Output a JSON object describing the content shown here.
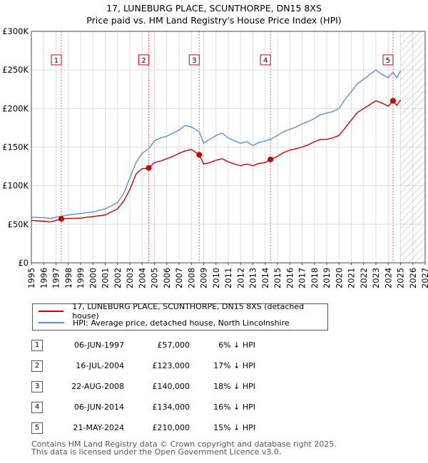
{
  "title_line1": "17, LUNEBURG PLACE, SCUNTHORPE, DN15 8XS",
  "title_line2": "Price paid vs. HM Land Registry's House Price Index (HPI)",
  "legend": {
    "property": "17, LUNEBURG PLACE, SCUNTHORPE, DN15 8XS (detached house)",
    "hpi": "HPI: Average price, detached house, North Lincolnshire"
  },
  "colors": {
    "property": "#cc0000",
    "hpi": "#5b8fd1",
    "grid": "#dddddd",
    "marker_line": "#e06666",
    "hatch": "#b0b0b0"
  },
  "chart_data": {
    "type": "line",
    "xlim": [
      1995,
      2027
    ],
    "ylim": [
      0,
      300000
    ],
    "y_ticks": [
      0,
      50000,
      100000,
      150000,
      200000,
      250000,
      300000
    ],
    "y_tick_labels": [
      "£0",
      "£50K",
      "£100K",
      "£150K",
      "£200K",
      "£250K",
      "£300K"
    ],
    "x_ticks": [
      1995,
      1996,
      1997,
      1998,
      1999,
      2000,
      2001,
      2002,
      2003,
      2004,
      2005,
      2006,
      2007,
      2008,
      2009,
      2010,
      2011,
      2012,
      2013,
      2014,
      2015,
      2016,
      2017,
      2018,
      2019,
      2020,
      2021,
      2022,
      2023,
      2024,
      2025,
      2026,
      2027
    ],
    "forecast_from": 2025.0,
    "series": [
      {
        "name": "17, LUNEBURG PLACE, SCUNTHORPE, DN15 8XS (detached house)",
        "points": [
          [
            1995.0,
            55000
          ],
          [
            1996.0,
            54000
          ],
          [
            1996.5,
            53000
          ],
          [
            1997.0,
            55000
          ],
          [
            1997.43,
            57000
          ],
          [
            1998.0,
            57500
          ],
          [
            1999.0,
            58000
          ],
          [
            2000.0,
            60000
          ],
          [
            2001.0,
            62000
          ],
          [
            2002.0,
            70000
          ],
          [
            2002.5,
            80000
          ],
          [
            2003.0,
            95000
          ],
          [
            2003.5,
            115000
          ],
          [
            2004.0,
            122000
          ],
          [
            2004.54,
            123000
          ],
          [
            2005.0,
            130000
          ],
          [
            2005.5,
            132000
          ],
          [
            2006.0,
            135000
          ],
          [
            2006.5,
            138000
          ],
          [
            2007.0,
            142000
          ],
          [
            2007.5,
            145000
          ],
          [
            2008.0,
            147000
          ],
          [
            2008.64,
            140000
          ],
          [
            2009.0,
            128000
          ],
          [
            2009.5,
            130000
          ],
          [
            2010.0,
            133000
          ],
          [
            2010.5,
            135000
          ],
          [
            2011.0,
            131000
          ],
          [
            2011.5,
            128000
          ],
          [
            2012.0,
            126000
          ],
          [
            2012.5,
            128000
          ],
          [
            2013.0,
            126000
          ],
          [
            2013.5,
            129000
          ],
          [
            2014.0,
            130000
          ],
          [
            2014.43,
            134000
          ],
          [
            2015.0,
            138000
          ],
          [
            2015.5,
            143000
          ],
          [
            2016.0,
            146000
          ],
          [
            2016.5,
            148000
          ],
          [
            2017.0,
            150000
          ],
          [
            2017.5,
            153000
          ],
          [
            2018.0,
            157000
          ],
          [
            2018.5,
            160000
          ],
          [
            2019.0,
            160000
          ],
          [
            2019.5,
            162000
          ],
          [
            2020.0,
            165000
          ],
          [
            2020.5,
            175000
          ],
          [
            2021.0,
            185000
          ],
          [
            2021.5,
            195000
          ],
          [
            2022.0,
            200000
          ],
          [
            2022.5,
            205000
          ],
          [
            2023.0,
            210000
          ],
          [
            2023.5,
            207000
          ],
          [
            2024.0,
            203000
          ],
          [
            2024.39,
            210000
          ],
          [
            2024.7,
            204000
          ],
          [
            2025.0,
            211000
          ]
        ]
      },
      {
        "name": "HPI: Average price, detached house, North Lincolnshire",
        "points": [
          [
            1995.0,
            59000
          ],
          [
            1996.0,
            58500
          ],
          [
            1996.5,
            57500
          ],
          [
            1997.0,
            59000
          ],
          [
            1997.43,
            60500
          ],
          [
            1998.0,
            62000
          ],
          [
            1999.0,
            64000
          ],
          [
            2000.0,
            66000
          ],
          [
            2001.0,
            70000
          ],
          [
            2002.0,
            78000
          ],
          [
            2002.5,
            90000
          ],
          [
            2003.0,
            110000
          ],
          [
            2003.5,
            130000
          ],
          [
            2004.0,
            142000
          ],
          [
            2004.54,
            148000
          ],
          [
            2005.0,
            158000
          ],
          [
            2005.5,
            162000
          ],
          [
            2006.0,
            164000
          ],
          [
            2006.5,
            168000
          ],
          [
            2007.0,
            172000
          ],
          [
            2007.5,
            178000
          ],
          [
            2008.0,
            176000
          ],
          [
            2008.64,
            170000
          ],
          [
            2009.0,
            155000
          ],
          [
            2009.5,
            160000
          ],
          [
            2010.0,
            165000
          ],
          [
            2010.5,
            168000
          ],
          [
            2011.0,
            162000
          ],
          [
            2011.5,
            158000
          ],
          [
            2012.0,
            155000
          ],
          [
            2012.5,
            157000
          ],
          [
            2013.0,
            152000
          ],
          [
            2013.5,
            156000
          ],
          [
            2014.0,
            158000
          ],
          [
            2014.43,
            160000
          ],
          [
            2015.0,
            165000
          ],
          [
            2015.5,
            170000
          ],
          [
            2016.0,
            173000
          ],
          [
            2016.5,
            176000
          ],
          [
            2017.0,
            180000
          ],
          [
            2017.5,
            183000
          ],
          [
            2018.0,
            187000
          ],
          [
            2018.5,
            192000
          ],
          [
            2019.0,
            194000
          ],
          [
            2019.5,
            196000
          ],
          [
            2020.0,
            200000
          ],
          [
            2020.5,
            212000
          ],
          [
            2021.0,
            222000
          ],
          [
            2021.5,
            232000
          ],
          [
            2022.0,
            238000
          ],
          [
            2022.5,
            244000
          ],
          [
            2023.0,
            250000
          ],
          [
            2023.5,
            244000
          ],
          [
            2024.0,
            240000
          ],
          [
            2024.39,
            247000
          ],
          [
            2024.7,
            240000
          ],
          [
            2025.0,
            249000
          ]
        ]
      }
    ],
    "sales": [
      {
        "num": "1",
        "x": 1997.43,
        "price": 57000,
        "date": "06-JUN-1997",
        "price_label": "£57,000",
        "hpi": "6% ↓ HPI"
      },
      {
        "num": "2",
        "x": 2004.54,
        "price": 123000,
        "date": "16-JUL-2004",
        "price_label": "£123,000",
        "hpi": "17% ↓ HPI"
      },
      {
        "num": "3",
        "x": 2008.64,
        "price": 140000,
        "date": "22-AUG-2008",
        "price_label": "£140,000",
        "hpi": "18% ↓ HPI"
      },
      {
        "num": "4",
        "x": 2014.43,
        "price": 134000,
        "date": "06-JUN-2014",
        "price_label": "£134,000",
        "hpi": "16% ↓ HPI"
      },
      {
        "num": "5",
        "x": 2024.39,
        "price": 210000,
        "date": "21-MAY-2024",
        "price_label": "£210,000",
        "hpi": "15% ↓ HPI"
      }
    ]
  },
  "footer_line1": "Contains HM Land Registry data © Crown copyright and database right 2025.",
  "footer_line2": "This data is licensed under the Open Government Licence v3.0."
}
